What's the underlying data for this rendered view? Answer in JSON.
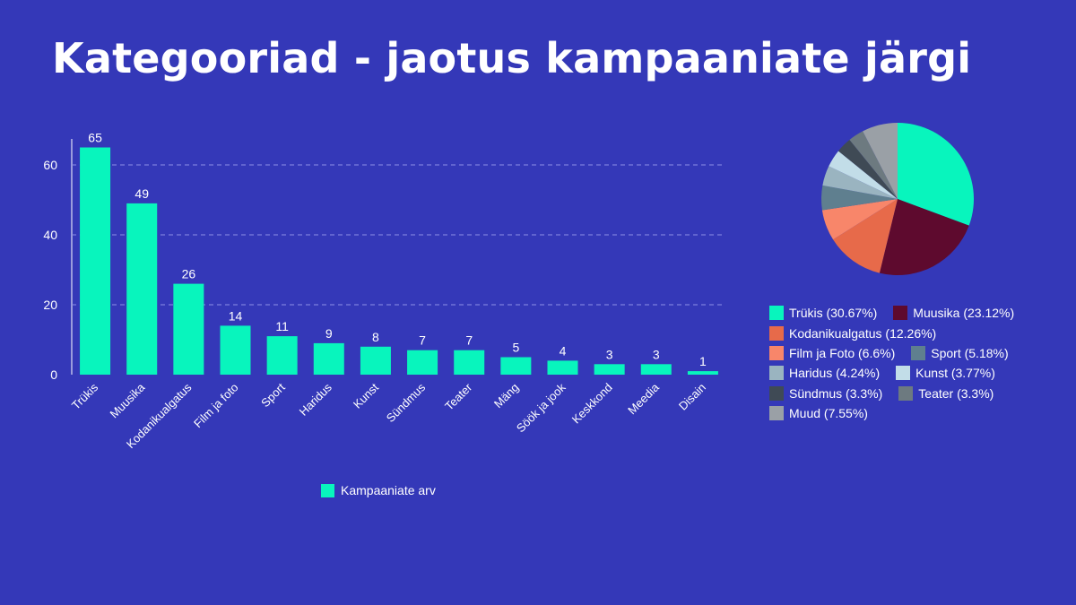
{
  "title": "Kategooriad - jaotus kampaaniate järgi",
  "chart_data": [
    {
      "type": "bar",
      "categories": [
        "Trükis",
        "Muusika",
        "Kodanikualgatus",
        "Film ja foto",
        "Sport",
        "Haridus",
        "Kunst",
        "Sündmus",
        "Teater",
        "Mäng",
        "Söök ja jook",
        "Keskkond",
        "Meedia",
        "Disain"
      ],
      "series": [
        {
          "name": "Kampaaniate arv",
          "values": [
            65,
            49,
            26,
            14,
            11,
            9,
            8,
            7,
            7,
            5,
            4,
            3,
            3,
            1
          ],
          "color": "#08f5bd"
        }
      ],
      "title": "",
      "xlabel": "",
      "ylabel": "",
      "ylim": [
        0,
        70
      ],
      "yticks": [
        0,
        20,
        40,
        60
      ],
      "grid": true,
      "legend": "bottom"
    },
    {
      "type": "pie",
      "slices": [
        {
          "label": "Trükis (30.67%)",
          "value": 30.67,
          "color": "#08f5bd"
        },
        {
          "label": "Muusika (23.12%)",
          "value": 23.12,
          "color": "#5e0a2e"
        },
        {
          "label": "Kodanikualgatus (12.26%)",
          "value": 12.26,
          "color": "#e76a4a"
        },
        {
          "label": "Film ja Foto (6.6%)",
          "value": 6.6,
          "color": "#f8866a"
        },
        {
          "label": "Sport (5.18%)",
          "value": 5.18,
          "color": "#5f7f8f"
        },
        {
          "label": "Haridus (4.24%)",
          "value": 4.24,
          "color": "#9ab4c0"
        },
        {
          "label": "Kunst (3.77%)",
          "value": 3.77,
          "color": "#c2dde8"
        },
        {
          "label": "Sündmus (3.3%)",
          "value": 3.3,
          "color": "#3f4a55"
        },
        {
          "label": "Teater (3.3%)",
          "value": 3.3,
          "color": "#6d7a80"
        },
        {
          "label": "Muud (7.55%)",
          "value": 7.55,
          "color": "#9aa0a6"
        }
      ],
      "legend": "bottom",
      "legend_rows": [
        [
          0,
          1
        ],
        [
          2
        ],
        [
          3,
          4
        ],
        [
          5,
          6
        ],
        [
          7,
          8
        ],
        [
          9
        ]
      ]
    }
  ]
}
